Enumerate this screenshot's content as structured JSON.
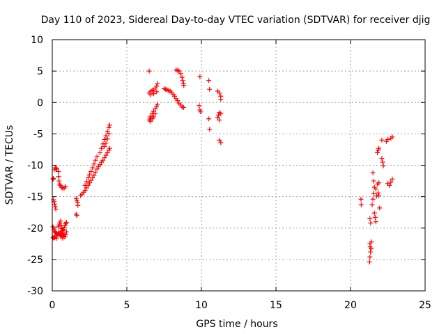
{
  "chart_data": {
    "type": "scatter",
    "title": "Day 110 of 2023, Sidereal Day-to-day VTEC variation (SDTVAR) for receiver djig",
    "xlabel": "GPS time / hours",
    "ylabel": "SDTVAR / TECUs",
    "xlim": [
      0,
      25
    ],
    "ylim": [
      -30,
      10
    ],
    "xticks": [
      0,
      5,
      10,
      15,
      20,
      25
    ],
    "yticks": [
      -30,
      -25,
      -20,
      -15,
      -10,
      -5,
      0,
      5,
      10
    ],
    "grid": true,
    "marker": "plus",
    "color": "#ff0000",
    "series": [
      {
        "name": "SDTVAR",
        "points": [
          [
            0.05,
            -12.2
          ],
          [
            0.08,
            -12.1
          ],
          [
            0.08,
            -15.5
          ],
          [
            0.12,
            -15.8
          ],
          [
            0.16,
            -16.2
          ],
          [
            0.2,
            -16.6
          ],
          [
            0.24,
            -17.0
          ],
          [
            0.15,
            -10.7
          ],
          [
            0.2,
            -10.4
          ],
          [
            0.25,
            -10.5
          ],
          [
            0.3,
            -10.6
          ],
          [
            0.4,
            -11.0
          ],
          [
            0.43,
            -11.8
          ],
          [
            0.45,
            -12.5
          ],
          [
            0.48,
            -13.0
          ],
          [
            0.55,
            -13.2
          ],
          [
            0.62,
            -13.5
          ],
          [
            0.7,
            -13.7
          ],
          [
            0.8,
            -13.6
          ],
          [
            0.9,
            -13.4
          ],
          [
            0.05,
            -21.5
          ],
          [
            0.1,
            -21.6
          ],
          [
            0.15,
            -21.5
          ],
          [
            0.2,
            -21.4
          ],
          [
            0.3,
            -21.6
          ],
          [
            0.05,
            -19.8
          ],
          [
            0.1,
            -20.2
          ],
          [
            0.15,
            -20.5
          ],
          [
            0.2,
            -20.7
          ],
          [
            0.25,
            -20.8
          ],
          [
            0.3,
            -20.9
          ],
          [
            0.35,
            -21.0
          ],
          [
            0.4,
            -20.8
          ],
          [
            0.45,
            -20.9
          ],
          [
            0.5,
            -21.0
          ],
          [
            0.55,
            -21.2
          ],
          [
            0.6,
            -21.3
          ],
          [
            0.65,
            -21.1
          ],
          [
            0.7,
            -21.0
          ],
          [
            0.75,
            -21.2
          ],
          [
            0.8,
            -21.1
          ],
          [
            0.9,
            -21.0
          ],
          [
            0.4,
            -19.8
          ],
          [
            0.45,
            -19.5
          ],
          [
            0.5,
            -19.2
          ],
          [
            0.55,
            -18.9
          ],
          [
            0.6,
            -19.6
          ],
          [
            0.65,
            -20.1
          ],
          [
            0.7,
            -20.4
          ],
          [
            0.75,
            -20.2
          ],
          [
            0.8,
            -19.9
          ],
          [
            0.85,
            -19.6
          ],
          [
            0.9,
            -19.3
          ],
          [
            0.95,
            -19.1
          ],
          [
            0.6,
            -20.5
          ],
          [
            0.65,
            -20.7
          ],
          [
            0.7,
            -21.6
          ],
          [
            0.85,
            -21.4
          ],
          [
            0.95,
            -20.6
          ],
          [
            1.6,
            -17.8
          ],
          [
            1.65,
            -18.0
          ],
          [
            1.6,
            -15.3
          ],
          [
            1.65,
            -15.6
          ],
          [
            1.7,
            -15.9
          ],
          [
            1.72,
            -16.4
          ],
          [
            1.9,
            -14.8
          ],
          [
            2.0,
            -14.6
          ],
          [
            2.1,
            -14.3
          ],
          [
            2.2,
            -14.0
          ],
          [
            2.3,
            -13.6
          ],
          [
            2.4,
            -13.2
          ],
          [
            2.5,
            -12.8
          ],
          [
            2.6,
            -12.4
          ],
          [
            2.7,
            -12.0
          ],
          [
            2.8,
            -11.6
          ],
          [
            2.9,
            -11.1
          ],
          [
            3.0,
            -10.6
          ],
          [
            3.1,
            -10.2
          ],
          [
            3.2,
            -9.9
          ],
          [
            2.2,
            -13.2
          ],
          [
            2.3,
            -12.6
          ],
          [
            2.4,
            -12.0
          ],
          [
            2.5,
            -11.5
          ],
          [
            2.6,
            -11.0
          ],
          [
            2.7,
            -10.4
          ],
          [
            2.8,
            -9.8
          ],
          [
            2.9,
            -9.2
          ],
          [
            3.0,
            -8.6
          ],
          [
            3.2,
            -8.0
          ],
          [
            3.3,
            -7.3
          ],
          [
            3.4,
            -6.6
          ],
          [
            3.5,
            -5.9
          ],
          [
            3.6,
            -5.3
          ],
          [
            3.7,
            -4.6
          ],
          [
            3.8,
            -4.0
          ],
          [
            3.85,
            -3.6
          ],
          [
            3.3,
            -9.5
          ],
          [
            3.4,
            -9.2
          ],
          [
            3.5,
            -8.8
          ],
          [
            3.6,
            -8.4
          ],
          [
            3.7,
            -8.0
          ],
          [
            3.8,
            -7.6
          ],
          [
            3.85,
            -7.3
          ],
          [
            3.5,
            -7.0
          ],
          [
            3.6,
            -6.5
          ],
          [
            3.7,
            -5.8
          ],
          [
            3.8,
            -5.0
          ],
          [
            6.5,
            5.0
          ],
          [
            6.5,
            1.5
          ],
          [
            6.6,
            1.8
          ],
          [
            6.7,
            1.9
          ],
          [
            6.8,
            2.0
          ],
          [
            6.9,
            2.3
          ],
          [
            7.0,
            2.6
          ],
          [
            7.05,
            3.0
          ],
          [
            6.6,
            1.2
          ],
          [
            6.8,
            1.4
          ],
          [
            7.0,
            1.7
          ],
          [
            6.5,
            -2.8
          ],
          [
            6.55,
            -2.5
          ],
          [
            6.6,
            -2.2
          ],
          [
            6.7,
            -1.8
          ],
          [
            6.8,
            -1.4
          ],
          [
            6.9,
            -1.0
          ],
          [
            7.0,
            -0.6
          ],
          [
            7.05,
            -0.3
          ],
          [
            6.6,
            -3.0
          ],
          [
            6.7,
            -2.6
          ],
          [
            6.8,
            -2.3
          ],
          [
            6.9,
            -1.8
          ],
          [
            7.5,
            2.2
          ],
          [
            7.6,
            2.1
          ],
          [
            7.7,
            2.0
          ],
          [
            7.8,
            1.9
          ],
          [
            7.9,
            1.8
          ],
          [
            8.0,
            1.6
          ],
          [
            8.1,
            1.3
          ],
          [
            8.2,
            1.0
          ],
          [
            8.3,
            0.6
          ],
          [
            8.4,
            0.3
          ],
          [
            8.5,
            -0.1
          ],
          [
            8.6,
            -0.4
          ],
          [
            8.7,
            -0.7
          ],
          [
            8.8,
            -0.8
          ],
          [
            8.3,
            5.2
          ],
          [
            8.4,
            5.1
          ],
          [
            8.5,
            5.0
          ],
          [
            8.6,
            4.6
          ],
          [
            8.7,
            4.0
          ],
          [
            8.75,
            3.5
          ],
          [
            8.8,
            3.0
          ],
          [
            8.82,
            2.7
          ],
          [
            9.9,
            4.1
          ],
          [
            9.85,
            -0.5
          ],
          [
            9.9,
            -1.2
          ],
          [
            9.95,
            -1.5
          ],
          [
            10.5,
            3.5
          ],
          [
            10.55,
            2.1
          ],
          [
            10.5,
            -2.6
          ],
          [
            10.55,
            -4.3
          ],
          [
            11.1,
            1.8
          ],
          [
            11.2,
            1.5
          ],
          [
            11.3,
            1.0
          ],
          [
            11.3,
            0.5
          ],
          [
            11.1,
            -2.4
          ],
          [
            11.15,
            -2.0
          ],
          [
            11.2,
            -1.6
          ],
          [
            11.3,
            -1.8
          ],
          [
            11.2,
            -2.8
          ],
          [
            11.2,
            -6.0
          ],
          [
            11.3,
            -6.4
          ],
          [
            20.7,
            -15.4
          ],
          [
            20.72,
            -16.3
          ],
          [
            21.3,
            -18.5
          ],
          [
            21.35,
            -19.2
          ],
          [
            21.3,
            -22.5
          ],
          [
            21.32,
            -23.0
          ],
          [
            21.34,
            -23.8
          ],
          [
            21.3,
            -24.6
          ],
          [
            21.28,
            -25.4
          ],
          [
            21.4,
            -22.2
          ],
          [
            21.38,
            -23.3
          ],
          [
            21.5,
            -11.2
          ],
          [
            21.55,
            -12.5
          ],
          [
            21.6,
            -13.5
          ],
          [
            21.55,
            -14.5
          ],
          [
            21.5,
            -15.4
          ],
          [
            21.45,
            -16.3
          ],
          [
            21.6,
            -17.6
          ],
          [
            21.65,
            -18.3
          ],
          [
            21.7,
            -19.0
          ],
          [
            21.8,
            -13.0
          ],
          [
            21.85,
            -14.4
          ],
          [
            21.9,
            -14.8
          ],
          [
            21.8,
            -8.0
          ],
          [
            21.85,
            -7.6
          ],
          [
            21.9,
            -7.3
          ],
          [
            22.1,
            -8.9
          ],
          [
            22.15,
            -9.5
          ],
          [
            22.2,
            -10.1
          ],
          [
            22.1,
            -6.0
          ],
          [
            22.4,
            -6.2
          ],
          [
            22.5,
            -5.9
          ],
          [
            22.7,
            -5.7
          ],
          [
            22.8,
            -5.5
          ],
          [
            22.5,
            -12.9
          ],
          [
            22.6,
            -13.2
          ],
          [
            22.7,
            -12.7
          ],
          [
            22.8,
            -12.2
          ],
          [
            21.7,
            -13.8
          ],
          [
            21.75,
            -14.9
          ],
          [
            21.95,
            -16.8
          ],
          [
            21.9,
            -12.8
          ]
        ]
      }
    ]
  }
}
